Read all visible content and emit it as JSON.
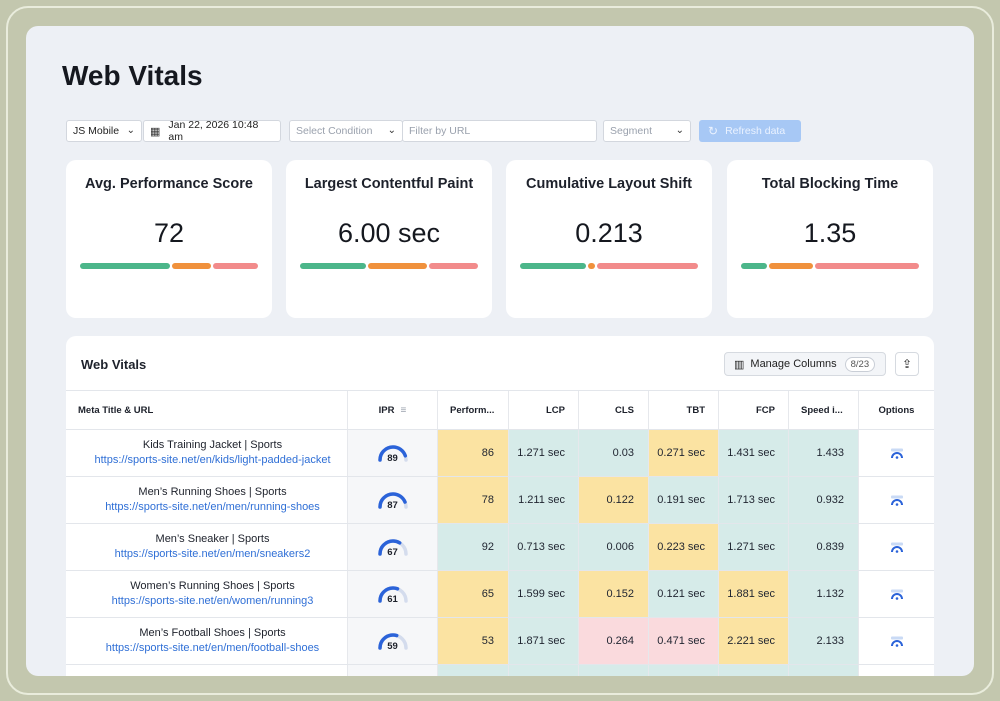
{
  "page": {
    "title": "Web Vitals"
  },
  "filters": {
    "device": "JS Mobile",
    "date": "Jan 22, 2026 10:48 am",
    "condition_placeholder": "Select Condition",
    "url_placeholder": "Filter by URL",
    "segment": "Segment",
    "refresh_label": "Refresh data"
  },
  "kpis": [
    {
      "title": "Avg. Performance Score",
      "value": "72",
      "dist": [
        0.52,
        0.22,
        0.26
      ]
    },
    {
      "title": "Largest Contentful Paint",
      "value": "6.00 sec",
      "dist": [
        0.38,
        0.34,
        0.28
      ]
    },
    {
      "title": "Cumulative Layout Shift",
      "value": "0.213",
      "dist": [
        0.38,
        0.04,
        0.58
      ]
    },
    {
      "title": "Total Blocking Time",
      "value": "1.35",
      "dist": [
        0.15,
        0.25,
        0.6
      ]
    }
  ],
  "colors": {
    "good": "#4cb68a",
    "warn": "#f0913c",
    "bad": "#f28b8b",
    "gauge": "#2b63d9",
    "gauge_track": "#d4dced",
    "link": "#2f6fd6"
  },
  "table": {
    "title": "Web Vitals",
    "manage_label": "Manage Columns",
    "manage_count": "8/23",
    "columns": {
      "title": "Meta Title & URL",
      "ipr": "IPR",
      "perf": "Perform...",
      "lcp": "LCP",
      "cls": "CLS",
      "tbt": "TBT",
      "fcp": "FCP",
      "speed": "Speed i...",
      "options": "Options"
    },
    "rows": [
      {
        "title": "Kids Training Jacket | Sports",
        "url": "https://sports-site.net/en/kids/light-padded-jacket",
        "ipr": "89",
        "perf": "86",
        "lcp": "1.271 sec",
        "cls": "0.03",
        "tbt": "0.271 sec",
        "fcp": "1.431 sec",
        "speed": "1.433",
        "status": {
          "perf": "warn",
          "lcp": "good",
          "cls": "good",
          "tbt": "warn",
          "fcp": "good",
          "speed": "good"
        }
      },
      {
        "title": "Men’s Running Shoes | Sports",
        "url": "https://sports-site.net/en/men/running-shoes",
        "ipr": "87",
        "perf": "78",
        "lcp": "1.211 sec",
        "cls": "0.122",
        "tbt": "0.191 sec",
        "fcp": "1.713 sec",
        "speed": "0.932",
        "status": {
          "perf": "warn",
          "lcp": "good",
          "cls": "warn",
          "tbt": "good",
          "fcp": "good",
          "speed": "good"
        }
      },
      {
        "title": "Men’s Sneaker | Sports",
        "url": "https://sports-site.net/en/men/sneakers2",
        "ipr": "67",
        "perf": "92",
        "lcp": "0.713 sec",
        "cls": "0.006",
        "tbt": "0.223 sec",
        "fcp": "1.271 sec",
        "speed": "0.839",
        "status": {
          "perf": "good",
          "lcp": "good",
          "cls": "good",
          "tbt": "warn",
          "fcp": "good",
          "speed": "good"
        }
      },
      {
        "title": "Women’s Running Shoes | Sports",
        "url": "https://sports-site.net/en/women/running3",
        "ipr": "61",
        "perf": "65",
        "lcp": "1.599 sec",
        "cls": "0.152",
        "tbt": "0.121 sec",
        "fcp": "1.881 sec",
        "speed": "1.132",
        "status": {
          "perf": "warn",
          "lcp": "good",
          "cls": "warn",
          "tbt": "good",
          "fcp": "warn",
          "speed": "good"
        }
      },
      {
        "title": "Men’s Football Shoes | Sports",
        "url": "https://sports-site.net/en/men/football-shoes",
        "ipr": "59",
        "perf": "53",
        "lcp": "1.871 sec",
        "cls": "0.264",
        "tbt": "0.471 sec",
        "fcp": "2.221 sec",
        "speed": "2.133",
        "status": {
          "perf": "warn",
          "lcp": "good",
          "cls": "bad",
          "tbt": "bad",
          "fcp": "warn",
          "speed": "good"
        }
      }
    ]
  }
}
